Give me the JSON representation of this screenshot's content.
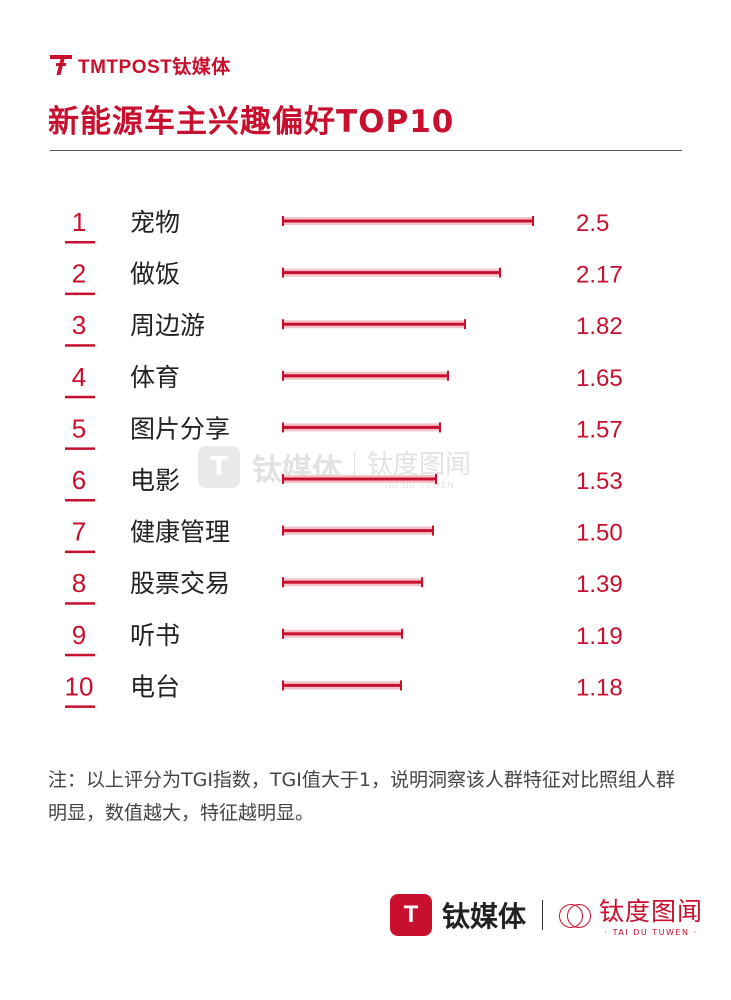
{
  "brand": {
    "logo_text": "TMTPOST钛媒体"
  },
  "title": "新能源车主兴趣偏好TOP10",
  "chart_data": {
    "type": "bar",
    "orientation": "horizontal",
    "categories": [
      "宠物",
      "做饭",
      "周边游",
      "体育",
      "图片分享",
      "电影",
      "健康管理",
      "股票交易",
      "听书",
      "电台"
    ],
    "ranks": [
      "1",
      "2",
      "3",
      "4",
      "5",
      "6",
      "7",
      "8",
      "9",
      "10"
    ],
    "values": [
      2.5,
      2.17,
      1.82,
      1.65,
      1.57,
      1.53,
      1.5,
      1.39,
      1.19,
      1.18
    ],
    "value_labels": [
      "2.5",
      "2.17",
      "1.82",
      "1.65",
      "1.57",
      "1.53",
      "1.50",
      "1.39",
      "1.19",
      "1.18"
    ],
    "xlim": [
      0,
      2.5
    ],
    "colors": {
      "bar": "#c8102e",
      "bar_glow": "#f3c3ca",
      "rank": "#c8102e",
      "value": "#c8102e"
    }
  },
  "watermark": {
    "name": "钛媒体",
    "sub_cn": "钛度图闻",
    "sub_en": "TAI DU TUWEN"
  },
  "note": "注：以上评分为TGI指数，TGI值大于1，说明洞察该人群特征对比照组人群明显，数值越大，特征越明显。",
  "footer": {
    "logo_name": "钛媒体",
    "sub_cn": "钛度图闻",
    "sub_en": "· TAI DU TUWEN ·"
  }
}
